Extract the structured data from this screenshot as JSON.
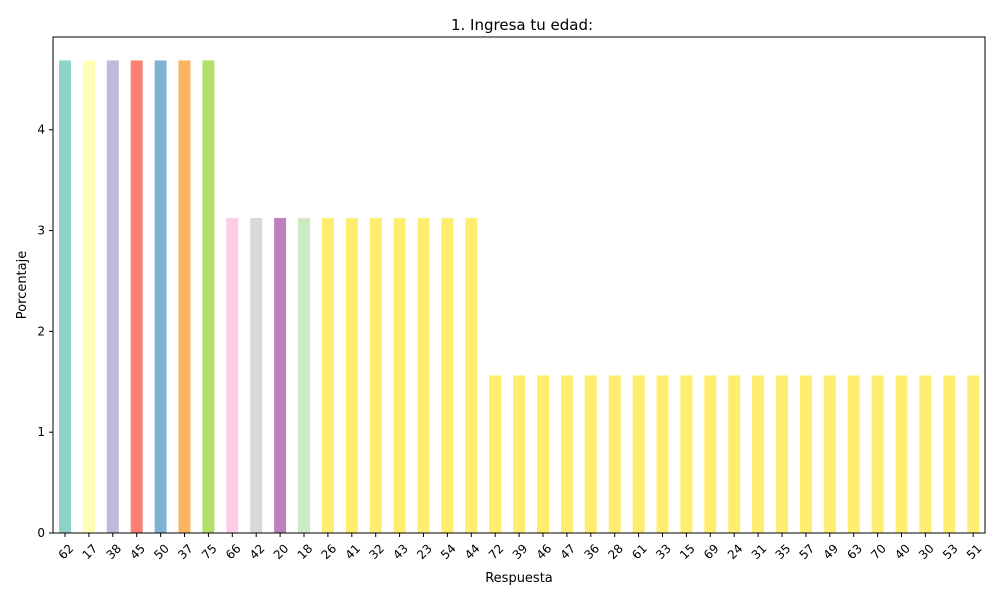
{
  "chart_data": {
    "type": "bar",
    "title": "1. Ingresa tu edad:",
    "xlabel": "Respuesta",
    "ylabel": "Porcentaje",
    "ylim": [
      0,
      4.92
    ],
    "yticks": [
      0,
      1,
      2,
      3,
      4
    ],
    "grid": false,
    "categories": [
      "62",
      "17",
      "38",
      "45",
      "50",
      "37",
      "75",
      "66",
      "42",
      "20",
      "18",
      "26",
      "41",
      "32",
      "43",
      "23",
      "54",
      "44",
      "72",
      "39",
      "46",
      "47",
      "36",
      "28",
      "61",
      "33",
      "15",
      "69",
      "24",
      "31",
      "35",
      "57",
      "49",
      "63",
      "70",
      "40",
      "30",
      "53",
      "51"
    ],
    "values": [
      4.6875,
      4.6875,
      4.6875,
      4.6875,
      4.6875,
      4.6875,
      4.6875,
      3.125,
      3.125,
      3.125,
      3.125,
      3.125,
      3.125,
      3.125,
      3.125,
      3.125,
      3.125,
      3.125,
      1.5625,
      1.5625,
      1.5625,
      1.5625,
      1.5625,
      1.5625,
      1.5625,
      1.5625,
      1.5625,
      1.5625,
      1.5625,
      1.5625,
      1.5625,
      1.5625,
      1.5625,
      1.5625,
      1.5625,
      1.5625,
      1.5625,
      1.5625,
      1.5625
    ],
    "colors": [
      "#8dd3c7",
      "#ffffb3",
      "#bebada",
      "#fb8072",
      "#80b1d3",
      "#fdb462",
      "#b3de69",
      "#fccde5",
      "#d9d9d9",
      "#bc80bd",
      "#ccebc5",
      "#ffed6f",
      "#ffed6f",
      "#ffed6f",
      "#ffed6f",
      "#ffed6f",
      "#ffed6f",
      "#ffed6f",
      "#ffed6f",
      "#ffed6f",
      "#ffed6f",
      "#ffed6f",
      "#ffed6f",
      "#ffed6f",
      "#ffed6f",
      "#ffed6f",
      "#ffed6f",
      "#ffed6f",
      "#ffed6f",
      "#ffed6f",
      "#ffed6f",
      "#ffed6f",
      "#ffed6f",
      "#ffed6f",
      "#ffed6f",
      "#ffed6f",
      "#ffed6f",
      "#ffed6f",
      "#ffed6f"
    ]
  }
}
